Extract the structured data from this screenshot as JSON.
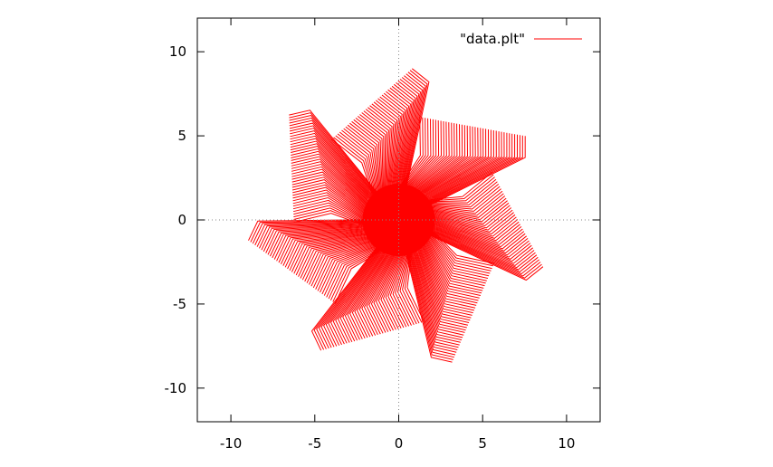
{
  "chart_data": {
    "type": "line",
    "title": "",
    "xlabel": "",
    "ylabel": "",
    "xlim": [
      -12,
      12
    ],
    "ylim": [
      -12,
      12
    ],
    "xticks": [
      -10,
      -5,
      0,
      5,
      10
    ],
    "yticks": [
      -10,
      -5,
      0,
      5,
      10
    ],
    "zero_axes": "dotted",
    "grid": false,
    "legend": {
      "position": "top-right",
      "entries": [
        "\"data.plt\""
      ]
    },
    "series": [
      {
        "name": "\"data.plt\"",
        "color": "#ff0000",
        "shape": "7-arm pinwheel of hooked lines radiating from the origin"
      }
    ]
  }
}
